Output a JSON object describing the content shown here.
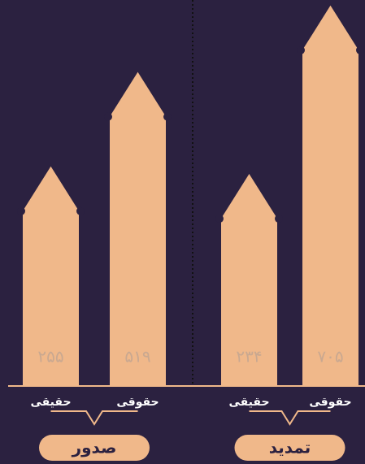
{
  "chart_data": {
    "type": "bar",
    "categories": [
      "حقیقی",
      "حقوقی",
      "حقیقی",
      "حقوقی"
    ],
    "values": [
      255,
      519,
      234,
      705
    ],
    "value_labels": [
      "۲۵۵",
      "۵۱۹",
      "۲۳۴",
      "۷۰۵"
    ],
    "groups": [
      "صدور",
      "تمدید"
    ],
    "color": "#f0b88a"
  }
}
